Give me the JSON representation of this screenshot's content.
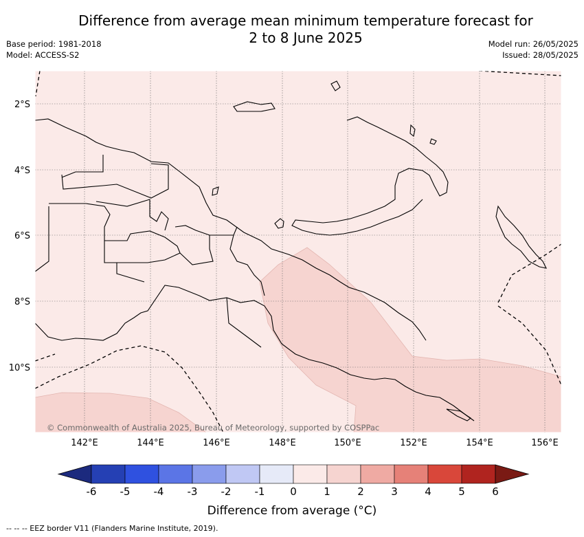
{
  "title_line1": "Difference from average mean minimum temperature forecast for",
  "title_line2": "2 to 8 June 2025",
  "base_period": "Base period: 1981-2018",
  "model": "Model: ACCESS-S2",
  "model_run": "Model run: 26/05/2025",
  "issued": "Issued: 28/05/2025",
  "copyright": "© Commonwealth of Australia 2025, Bureau of Meteorology, supported by COSPPac",
  "lat_labels": [
    "2°S",
    "4°S",
    "6°S",
    "8°S",
    "10°S"
  ],
  "lon_labels": [
    "142°E",
    "144°E",
    "146°E",
    "148°E",
    "150°E",
    "152°E",
    "154°E",
    "156°E"
  ],
  "colorbar": {
    "title": "Difference from average (°C)",
    "ticks": [
      "-6",
      "-5",
      "-4",
      "-3",
      "-2",
      "-1",
      "0",
      "1",
      "2",
      "3",
      "4",
      "5",
      "6"
    ],
    "colors": [
      "#1c2a7e",
      "#2540b4",
      "#2f51e0",
      "#5b75e6",
      "#8a9cec",
      "#c0c8f4",
      "#e6eaf8",
      "#fbeae8",
      "#f6d4d0",
      "#efaaa3",
      "#e68178",
      "#d9473a",
      "#b0241f",
      "#7a1a14"
    ]
  },
  "shading_colors": {
    "background": "#fbeae8",
    "anomaly_1_2": "#f6d4d0"
  },
  "footnote": "--  --  -- EEZ border V11 (Flanders Marine Institute, 2019)."
}
